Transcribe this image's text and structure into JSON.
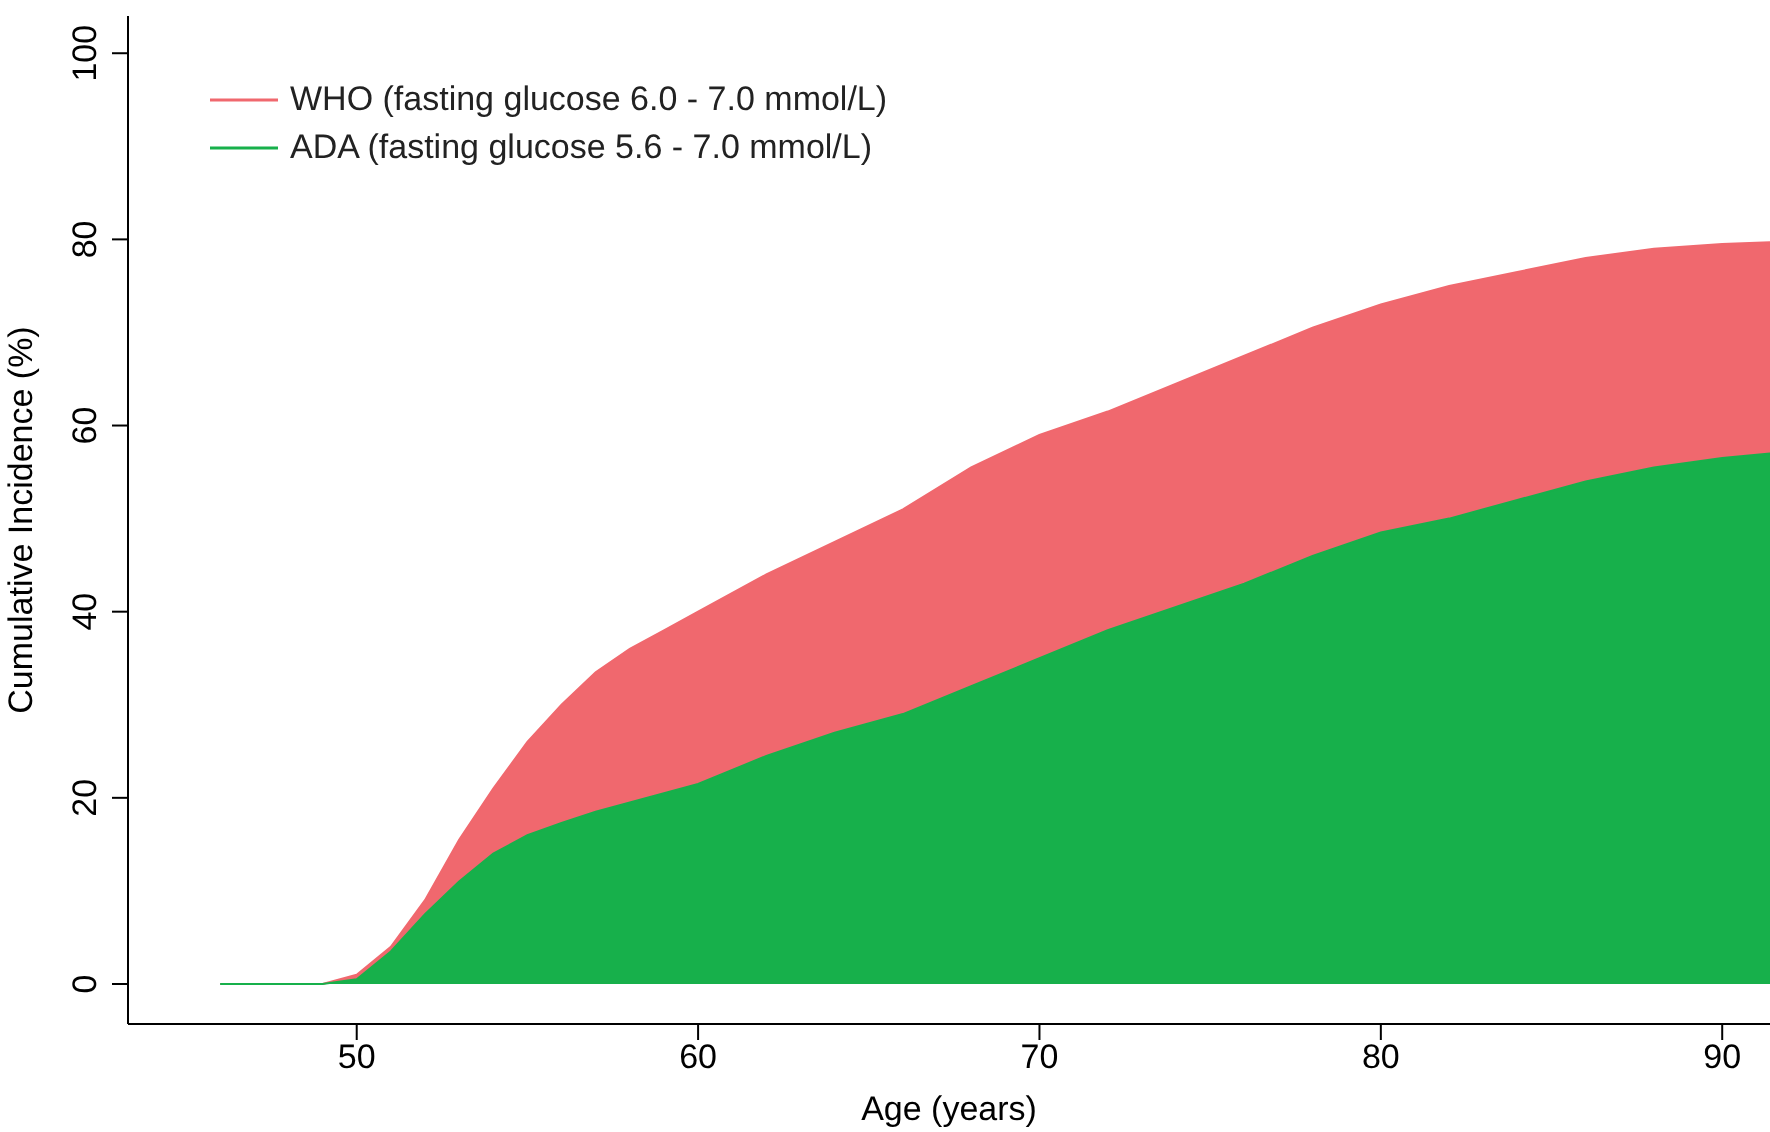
{
  "chart_data": {
    "type": "area",
    "xlabel": "Age (years)",
    "ylabel": "Cumulative Incidence (%)",
    "x": [
      46,
      49,
      50,
      51,
      52,
      53,
      54,
      55,
      56,
      57,
      58,
      59,
      60,
      62,
      64,
      66,
      68,
      70,
      72,
      74,
      76,
      78,
      80,
      82,
      84,
      86,
      88,
      90,
      91.4
    ],
    "series": [
      {
        "name": "WHO (fasting glucose 6.0 - 7.0 mmol/L)",
        "color": "#f0686e",
        "values": [
          0,
          0,
          1,
          4,
          9,
          15.5,
          21,
          26,
          30,
          33.5,
          36,
          38,
          40,
          44,
          47.5,
          51,
          55.5,
          59,
          61.5,
          64.5,
          67.5,
          70.5,
          73,
          75,
          76.5,
          78,
          79,
          79.5,
          79.7
        ]
      },
      {
        "name": "ADA (fasting glucose 5.6 - 7.0 mmol/L)",
        "color": "#17b04b",
        "values": [
          0,
          0,
          0.5,
          3.5,
          7.5,
          11,
          14,
          16,
          17.3,
          18.5,
          19.5,
          20.5,
          21.5,
          24.5,
          27,
          29,
          32,
          35,
          38,
          40.5,
          43,
          46,
          48.5,
          50,
          52,
          54,
          55.5,
          56.5,
          57
        ]
      }
    ],
    "xlim": [
      43.3,
      91.4
    ],
    "xticks": [
      50,
      60,
      70,
      80,
      90
    ],
    "ylim": [
      -4.3,
      104
    ],
    "yticks": [
      0,
      20,
      40,
      60,
      80,
      100
    ],
    "grid": false,
    "legend": "top left"
  }
}
